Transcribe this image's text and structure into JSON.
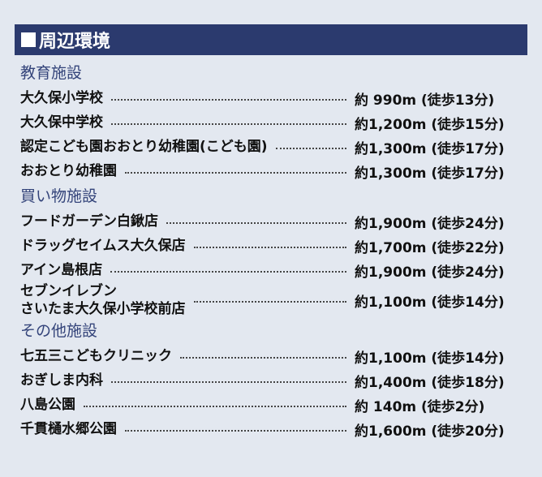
{
  "header": {
    "title": "周辺環境",
    "icon": "square-bullet-icon"
  },
  "colors": {
    "header_bg": "#2b3a6e",
    "category_text": "#34447a",
    "background": "#e3e8f0"
  },
  "sections": [
    {
      "category": "教育施設",
      "items": [
        {
          "name": "大久保小学校",
          "distance": "約 990m (徒歩13分)"
        },
        {
          "name": "大久保中学校",
          "distance": "約1,200m (徒歩15分)"
        },
        {
          "name": "認定こども園おおとり幼稚園(こども園)",
          "distance": "約1,300m (徒歩17分)"
        },
        {
          "name": "おおとり幼稚園",
          "distance": "約1,300m (徒歩17分)"
        }
      ]
    },
    {
      "category": "買い物施設",
      "items": [
        {
          "name": "フードガーデン白鍬店",
          "distance": "約1,900m (徒歩24分)"
        },
        {
          "name": "ドラッグセイムス大久保店",
          "distance": "約1,700m (徒歩22分)"
        },
        {
          "name": "アイン島根店",
          "distance": "約1,900m (徒歩24分)"
        },
        {
          "name": "セブンイレブン",
          "name2": "さいたま大久保小学校前店",
          "distance": "約1,100m (徒歩14分)"
        }
      ]
    },
    {
      "category": "その他施設",
      "items": [
        {
          "name": "七五三こどもクリニック",
          "distance": "約1,100m (徒歩14分)"
        },
        {
          "name": "おぎしま内科",
          "distance": "約1,400m (徒歩18分)"
        },
        {
          "name": "八島公園",
          "distance": "約 140m (徒歩2分)"
        },
        {
          "name": "千貫樋水郷公園",
          "distance": "約1,600m (徒歩20分)"
        }
      ]
    }
  ]
}
